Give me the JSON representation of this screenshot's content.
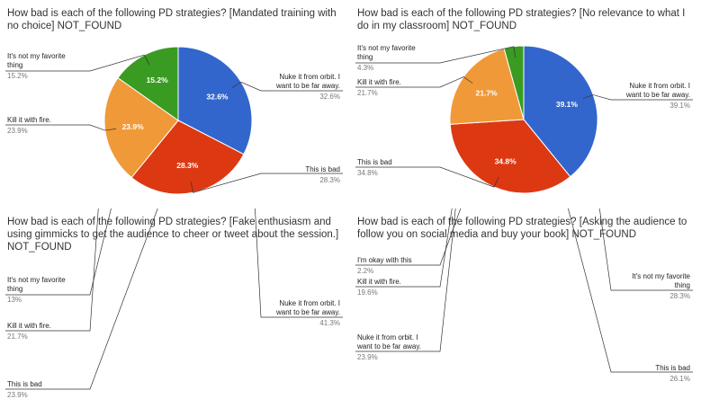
{
  "chart_data": [
    {
      "type": "pie",
      "title": "How bad is each of the following PD strategies? [Mandated training with no choice] NOT_FOUND",
      "slices": [
        {
          "label": "Nuke it from orbit. I want to be far away.",
          "value": 32.6,
          "pct_text": "32.6%",
          "display": "32.6%",
          "color": "#3366cc"
        },
        {
          "label": "This is bad",
          "value": 28.3,
          "pct_text": "28.3%",
          "display": "28.3%",
          "color": "#dc3912"
        },
        {
          "label": "Kill it with fire.",
          "value": 23.9,
          "pct_text": "23.9%",
          "display": "23.9%",
          "color": "#f09938"
        },
        {
          "label": "It's not my favorite thing",
          "value": 15.2,
          "pct_text": "15.2%",
          "display": "15.2%",
          "color": "#3a9b22"
        }
      ]
    },
    {
      "type": "pie",
      "title": "How bad is each of the following PD strategies? [No relevance to what I do in my classroom] NOT_FOUND",
      "slices": [
        {
          "label": "Nuke it from orbit. I want to be far away.",
          "value": 39.1,
          "pct_text": "39.1%",
          "display": "39.1%",
          "color": "#3366cc"
        },
        {
          "label": "This is bad",
          "value": 34.8,
          "pct_text": "34.8%",
          "display": "34.8%",
          "color": "#dc3912"
        },
        {
          "label": "Kill it with fire.",
          "value": 21.7,
          "pct_text": "21.7%",
          "display": "21.7%",
          "color": "#f09938"
        },
        {
          "label": "It's not my favorite thing",
          "value": 4.3,
          "pct_text": "4.3%",
          "display": "",
          "color": "#3a9b22"
        }
      ]
    },
    {
      "type": "pie",
      "title": "How bad is each of the following PD strategies? [Fake enthusiasm and using gimmicks to get the audience to cheer or tweet about the session.] NOT_FOUND",
      "slices": [
        {
          "label": "Nuke it from orbit. I want to be far away.",
          "value": 41.3,
          "pct_text": "41.3%",
          "display": "41.3%",
          "color": "#3366cc"
        },
        {
          "label": "This is bad",
          "value": 23.9,
          "pct_text": "23.9%",
          "display": "23.9%",
          "color": "#dc3912"
        },
        {
          "label": "Kill it with fire.",
          "value": 21.7,
          "pct_text": "21.7%",
          "display": "21.7%",
          "color": "#f09938"
        },
        {
          "label": "It's not my favorite thing",
          "value": 13,
          "pct_text": "13%",
          "display": "13%",
          "color": "#3a9b22"
        }
      ]
    },
    {
      "type": "pie",
      "title": "How bad is each of the following PD strategies? [Asking the audience to follow you on social media and buy your book] NOT_FOUND",
      "slices": [
        {
          "label": "It's not my favorite thing",
          "value": 28.3,
          "pct_text": "28.3%",
          "display": "28.3%",
          "color": "#3366cc"
        },
        {
          "label": "This is bad",
          "value": 26.1,
          "pct_text": "26.1%",
          "display": "26.1%",
          "color": "#dc3912"
        },
        {
          "label": "Nuke it from orbit. I want to be far away.",
          "value": 23.9,
          "pct_text": "23.9%",
          "display": "23.9%",
          "color": "#f09938"
        },
        {
          "label": "Kill it with fire.",
          "value": 19.6,
          "pct_text": "19.6%",
          "display": "19.6%",
          "color": "#3a9b22"
        },
        {
          "label": "I'm okay with this",
          "value": 2.2,
          "pct_text": "2.2%",
          "display": "",
          "color": "#990099"
        }
      ]
    }
  ]
}
